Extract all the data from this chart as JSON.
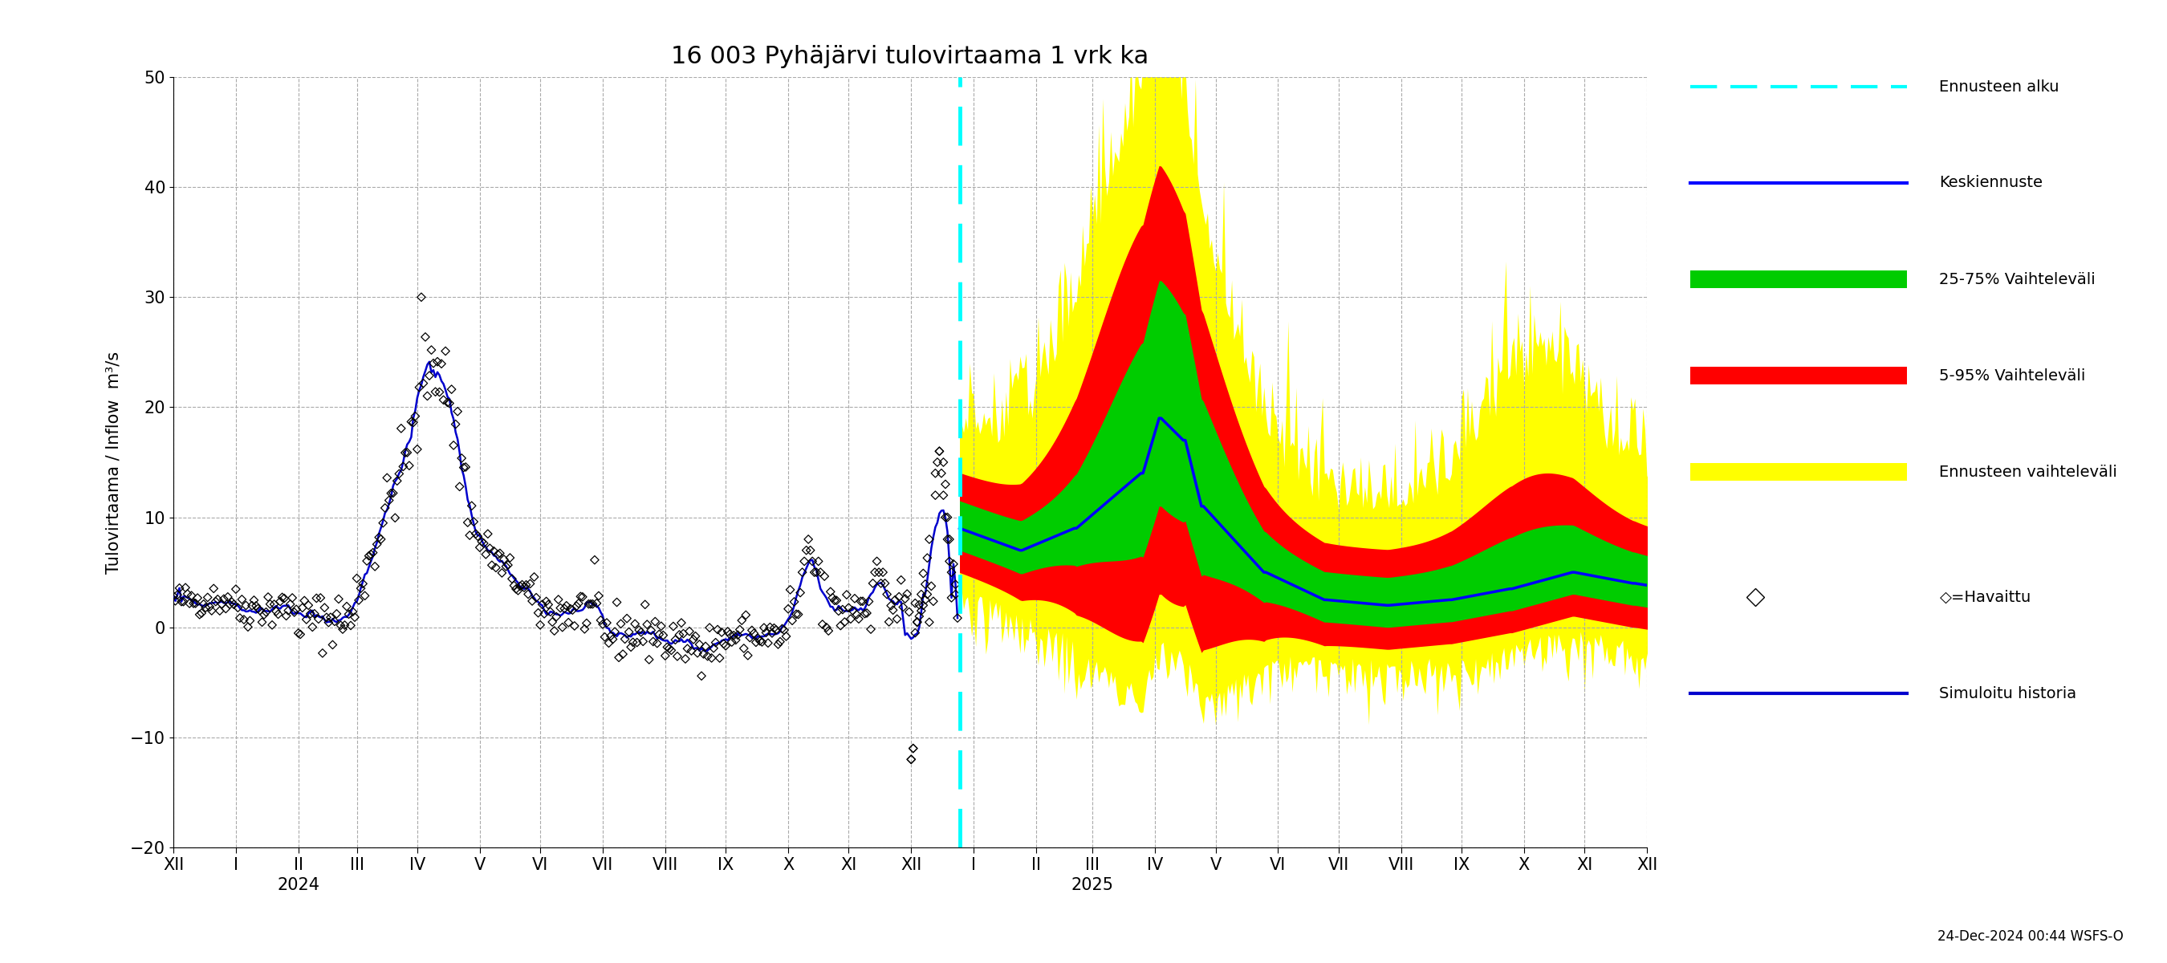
{
  "title": "16 003 Pyhäjärvi tulovirtaama 1 vrk ka",
  "ylabel": "Tulovirtaama / Inflow  m³/s",
  "ylim": [
    -20,
    50
  ],
  "yticks": [
    -20,
    -10,
    0,
    10,
    20,
    30,
    40,
    50
  ],
  "footnote": "24-Dec-2024 00:44 WSFS-O",
  "colors": {
    "yellow_band": "#FFFF00",
    "red_band": "#FF0000",
    "green_band": "#00CC00",
    "blue_line": "#0000FF",
    "cyan_dashed": "#00FFFF",
    "simulated_history": "#0000CD",
    "observed": "#000000"
  },
  "legend": {
    "ennusteen_alku": "Ennusteen alku",
    "keskiennuste": "Keskiennuste",
    "vaihteluvali_25_75": "25-75% Vaihteleväli",
    "vaihteluvali_5_95": "5-95% Vaihteleväli",
    "ennusteen_vaihteluvali": "Ennusteen vaihteleväli",
    "havaittu": "◇=Havaittu",
    "simuloitu": "Simuloitu historia"
  },
  "background_color": "#FFFFFF",
  "grid_color": "#AAAAAA"
}
